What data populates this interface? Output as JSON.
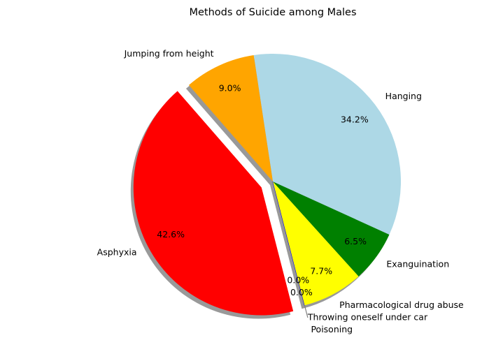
{
  "chart_data": {
    "type": "pie",
    "title": "Methods of Suicide among Males",
    "shadow": true,
    "autopct_format": "%.1f%%",
    "slices": [
      {
        "label": "Asphyxia",
        "value": 42.6,
        "pct_label": "42.6%",
        "color": "#ff0000",
        "exploded": true
      },
      {
        "label": "Poisoning",
        "value": 0.0,
        "pct_label": "0.0%",
        "color": "#800080",
        "exploded": true
      },
      {
        "label": "Throwing oneself under car",
        "value": 0.0,
        "pct_label": "0.0%",
        "color": "#0000ff",
        "exploded": false
      },
      {
        "label": "Pharmacological drug abuse",
        "value": 7.7,
        "pct_label": "7.7%",
        "color": "#ffff00",
        "exploded": false
      },
      {
        "label": "Exanguination",
        "value": 6.5,
        "pct_label": "6.5%",
        "color": "#008000",
        "exploded": false
      },
      {
        "label": "Hanging",
        "value": 34.2,
        "pct_label": "34.2%",
        "color": "#add8e6",
        "exploded": false
      },
      {
        "label": "Jumping from height",
        "value": 9.0,
        "pct_label": "9.0%",
        "color": "#ffa500",
        "exploded": false
      }
    ]
  }
}
